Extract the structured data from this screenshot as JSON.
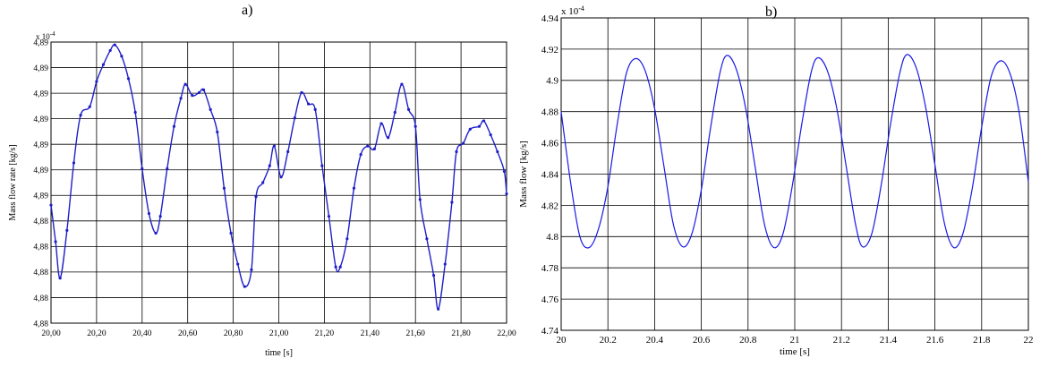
{
  "chart_data": [
    {
      "panel_label": "a)",
      "type": "line",
      "xlabel": "time [s]",
      "ylabel": "Mass flow rate  [kg/s]",
      "exponent_label": "x 10",
      "exponent_power": "-4",
      "xlim": [
        20.0,
        22.0
      ],
      "ylim": [
        4.88,
        4.89
      ],
      "x_ticks": [
        20.0,
        20.2,
        20.4,
        20.6,
        20.8,
        21.0,
        21.2,
        21.4,
        21.6,
        21.8,
        22.0
      ],
      "x_tick_labels": [
        "20,00",
        "20,20",
        "20,40",
        "20,60",
        "20,80",
        "21,00",
        "21,20",
        "21,40",
        "21,60",
        "21,80",
        "22,00"
      ],
      "y_tick_labels": [
        "4,88",
        "4,88",
        "4,88",
        "4,88",
        "4,88",
        "4,89",
        "4,89",
        "4,89",
        "4,89",
        "4,89",
        "4,89",
        "4,89"
      ],
      "grid": true,
      "line_color": "#1f1fc8",
      "markers": true,
      "series": [
        {
          "points": [
            [
              20.0,
              4.8842
            ],
            [
              20.02,
              4.8829
            ],
            [
              20.04,
              4.8816
            ],
            [
              20.07,
              4.8833
            ],
            [
              20.1,
              4.8857
            ],
            [
              20.13,
              4.8874
            ],
            [
              20.17,
              4.8877
            ],
            [
              20.2,
              4.8886
            ],
            [
              20.23,
              4.8892
            ],
            [
              20.26,
              4.8897
            ],
            [
              20.28,
              4.8899
            ],
            [
              20.31,
              4.8895
            ],
            [
              20.34,
              4.8887
            ],
            [
              20.37,
              4.8875
            ],
            [
              20.4,
              4.8855
            ],
            [
              20.43,
              4.8839
            ],
            [
              20.46,
              4.8832
            ],
            [
              20.48,
              4.8838
            ],
            [
              20.51,
              4.8855
            ],
            [
              20.54,
              4.887
            ],
            [
              20.57,
              4.888
            ],
            [
              20.59,
              4.8885
            ],
            [
              20.62,
              4.8881
            ],
            [
              20.65,
              4.8882
            ],
            [
              20.67,
              4.8883
            ],
            [
              20.7,
              4.8876
            ],
            [
              20.73,
              4.8868
            ],
            [
              20.76,
              4.8848
            ],
            [
              20.79,
              4.8832
            ],
            [
              20.82,
              4.8821
            ],
            [
              20.85,
              4.8813
            ],
            [
              20.88,
              4.8819
            ],
            [
              20.9,
              4.8845
            ],
            [
              20.93,
              4.885
            ],
            [
              20.96,
              4.8856
            ],
            [
              20.98,
              4.8863
            ],
            [
              21.01,
              4.8852
            ],
            [
              21.04,
              4.8861
            ],
            [
              21.07,
              4.8873
            ],
            [
              21.1,
              4.8882
            ],
            [
              21.13,
              4.8878
            ],
            [
              21.16,
              4.8876
            ],
            [
              21.19,
              4.8856
            ],
            [
              21.22,
              4.8838
            ],
            [
              21.25,
              4.882
            ],
            [
              21.27,
              4.882
            ],
            [
              21.3,
              4.883
            ],
            [
              21.33,
              4.8848
            ],
            [
              21.36,
              4.886
            ],
            [
              21.39,
              4.8863
            ],
            [
              21.42,
              4.8862
            ],
            [
              21.45,
              4.8871
            ],
            [
              21.48,
              4.8866
            ],
            [
              21.51,
              4.8875
            ],
            [
              21.54,
              4.8885
            ],
            [
              21.57,
              4.8876
            ],
            [
              21.6,
              4.887
            ],
            [
              21.62,
              4.8844
            ],
            [
              21.65,
              4.883
            ],
            [
              21.68,
              4.8817
            ],
            [
              21.7,
              4.8805
            ],
            [
              21.73,
              4.8821
            ],
            [
              21.76,
              4.8843
            ],
            [
              21.78,
              4.8861
            ],
            [
              21.81,
              4.8864
            ],
            [
              21.84,
              4.8869
            ],
            [
              21.88,
              4.887
            ],
            [
              21.9,
              4.8872
            ],
            [
              21.93,
              4.8867
            ],
            [
              21.96,
              4.8861
            ],
            [
              21.99,
              4.8854
            ],
            [
              22.0,
              4.8846
            ]
          ]
        }
      ]
    },
    {
      "panel_label": "b)",
      "type": "line",
      "xlabel": "time [s]",
      "ylabel": "Mass flow  [kg/s]",
      "exponent_label": "x 10",
      "exponent_power": "-4",
      "xlim": [
        20.0,
        22.0
      ],
      "ylim": [
        4.74,
        4.94
      ],
      "x_ticks": [
        20.0,
        20.2,
        20.4,
        20.6,
        20.8,
        21.0,
        21.2,
        21.4,
        21.6,
        21.8,
        22.0
      ],
      "x_tick_labels": [
        "20",
        "20.2",
        "20.4",
        "20.6",
        "20.8",
        "21",
        "21.2",
        "21.4",
        "21.6",
        "21.8",
        "22"
      ],
      "y_ticks": [
        4.74,
        4.76,
        4.78,
        4.8,
        4.82,
        4.84,
        4.86,
        4.88,
        4.9,
        4.92,
        4.94
      ],
      "y_tick_labels": [
        "4.74",
        "4.76",
        "4.78",
        "4.8",
        "4.82",
        "4.84",
        "4.86",
        "4.88",
        "4.9",
        "4.92",
        "4.94"
      ],
      "grid": true,
      "line_color": "#1a1ae6",
      "markers": false,
      "series": [
        {
          "points": [
            [
              20.0,
              4.88
            ],
            [
              20.04,
              4.835
            ],
            [
              20.08,
              4.8
            ],
            [
              20.12,
              4.793
            ],
            [
              20.16,
              4.805
            ],
            [
              20.2,
              4.832
            ],
            [
              20.24,
              4.872
            ],
            [
              20.28,
              4.905
            ],
            [
              20.32,
              4.914
            ],
            [
              20.36,
              4.906
            ],
            [
              20.4,
              4.882
            ],
            [
              20.44,
              4.845
            ],
            [
              20.48,
              4.808
            ],
            [
              20.52,
              4.7935
            ],
            [
              20.56,
              4.802
            ],
            [
              20.6,
              4.83
            ],
            [
              20.64,
              4.87
            ],
            [
              20.68,
              4.905
            ],
            [
              20.71,
              4.916
            ],
            [
              20.75,
              4.907
            ],
            [
              20.79,
              4.882
            ],
            [
              20.83,
              4.845
            ],
            [
              20.87,
              4.808
            ],
            [
              20.91,
              4.793
            ],
            [
              20.95,
              4.802
            ],
            [
              20.99,
              4.833
            ],
            [
              21.03,
              4.872
            ],
            [
              21.07,
              4.905
            ],
            [
              21.1,
              4.9145
            ],
            [
              21.14,
              4.906
            ],
            [
              21.18,
              4.882
            ],
            [
              21.22,
              4.845
            ],
            [
              21.26,
              4.808
            ],
            [
              21.29,
              4.7935
            ],
            [
              21.33,
              4.802
            ],
            [
              21.37,
              4.833
            ],
            [
              21.41,
              4.872
            ],
            [
              21.45,
              4.905
            ],
            [
              21.48,
              4.9165
            ],
            [
              21.52,
              4.908
            ],
            [
              21.56,
              4.883
            ],
            [
              21.6,
              4.846
            ],
            [
              21.64,
              4.809
            ],
            [
              21.68,
              4.793
            ],
            [
              21.72,
              4.802
            ],
            [
              21.76,
              4.831
            ],
            [
              21.8,
              4.87
            ],
            [
              21.84,
              4.902
            ],
            [
              21.88,
              4.9125
            ],
            [
              21.92,
              4.905
            ],
            [
              21.96,
              4.88
            ],
            [
              22.0,
              4.835
            ]
          ]
        }
      ]
    }
  ]
}
